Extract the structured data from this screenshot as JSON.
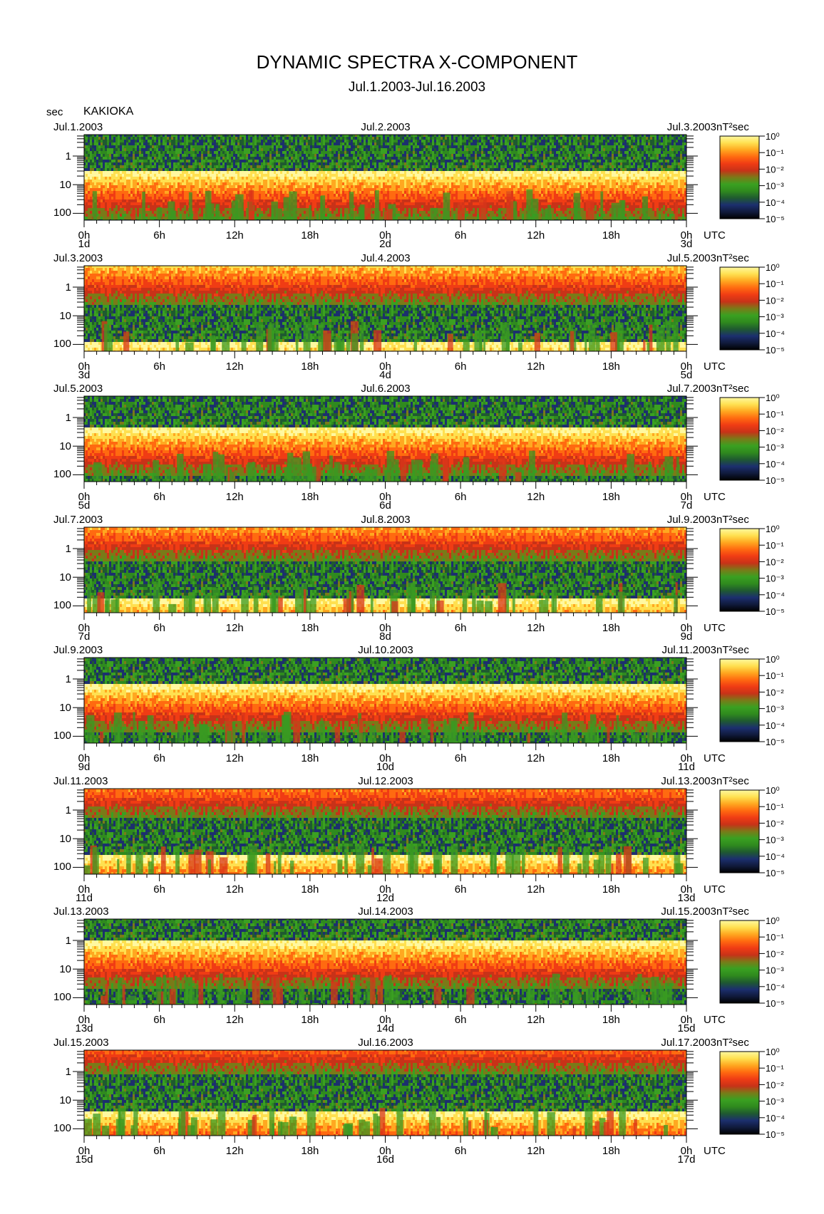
{
  "chart_data": {
    "type": "heatmap",
    "title": "DYNAMIC SPECTRA X-COMPONENT",
    "subtitle": "Jul.1.2003-Jul.16.2003",
    "station": "KAKIOKA",
    "y_unit": "sec",
    "y_scale": "log",
    "y_ticks": [
      "1",
      "10",
      "100"
    ],
    "x_unit": "UTC",
    "x_ticks": [
      "0h",
      "6h",
      "12h",
      "18h",
      "0h",
      "6h",
      "12h",
      "18h",
      "0h"
    ],
    "colorbar_unit": "nT²sec",
    "colorbar_scale": "log",
    "colorbar_ticks": [
      "10⁰",
      "10⁻¹",
      "10⁻²",
      "10⁻³",
      "10⁻⁴",
      "10⁻⁵"
    ],
    "colormap": [
      "#000000",
      "#101a3c",
      "#1c2f6e",
      "#1f5a30",
      "#2f8a1e",
      "#3aa021",
      "#7a7a18",
      "#c83218",
      "#f03c14",
      "#ff6a10",
      "#ffa820",
      "#ffe050",
      "#fff8a0"
    ],
    "panels": [
      {
        "date_left": "Jul.1.2003",
        "date_mid": "Jul.2.2003",
        "date_right": "Jul.3.2003",
        "day_labels": [
          "1d",
          "2d",
          "3d"
        ]
      },
      {
        "date_left": "Jul.3.2003",
        "date_mid": "Jul.4.2003",
        "date_right": "Jul.5.2003",
        "day_labels": [
          "3d",
          "4d",
          "5d"
        ]
      },
      {
        "date_left": "Jul.5.2003",
        "date_mid": "Jul.6.2003",
        "date_right": "Jul.7.2003",
        "day_labels": [
          "5d",
          "6d",
          "7d"
        ]
      },
      {
        "date_left": "Jul.7.2003",
        "date_mid": "Jul.8.2003",
        "date_right": "Jul.9.2003",
        "day_labels": [
          "7d",
          "8d",
          "9d"
        ]
      },
      {
        "date_left": "Jul.9.2003",
        "date_mid": "Jul.10.2003",
        "date_right": "Jul.11.2003",
        "day_labels": [
          "9d",
          "10d",
          "11d"
        ]
      },
      {
        "date_left": "Jul.11.2003",
        "date_mid": "Jul.12.2003",
        "date_right": "Jul.13.2003",
        "day_labels": [
          "11d",
          "12d",
          "13d"
        ]
      },
      {
        "date_left": "Jul.13.2003",
        "date_mid": "Jul.14.2003",
        "date_right": "Jul.15.2003",
        "day_labels": [
          "13d",
          "14d",
          "15d"
        ]
      },
      {
        "date_left": "Jul.15.2003",
        "date_mid": "Jul.16.2003",
        "date_right": "Jul.17.2003",
        "day_labels": [
          "15d",
          "16d",
          "17d"
        ]
      }
    ]
  }
}
